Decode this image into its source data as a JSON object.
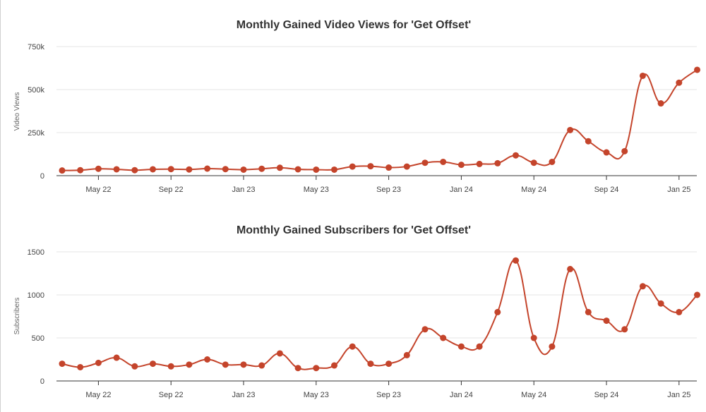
{
  "theme": {
    "line_color": "#c4442b",
    "grid_color": "#e6e6e6",
    "axis_color": "#333333"
  },
  "chart_data": [
    {
      "type": "line",
      "title": "Monthly Gained Video Views for 'Get Offset'",
      "xlabel": "",
      "ylabel": "Video Views",
      "x_ticks": [
        "May 22",
        "Sep 22",
        "Jan 23",
        "May 23",
        "Sep 23",
        "Jan 24",
        "May 24",
        "Sep 24",
        "Jan 25"
      ],
      "y_ticks": [
        "0",
        "250k",
        "500k",
        "750k"
      ],
      "ylim": [
        0,
        750000
      ],
      "grid": true,
      "series": [
        {
          "x": [
            "2022-03",
            "2022-04",
            "2022-05",
            "2022-06",
            "2022-07",
            "2022-08",
            "2022-09",
            "2022-10",
            "2022-11",
            "2022-12",
            "2023-01",
            "2023-02",
            "2023-03",
            "2023-04",
            "2023-05",
            "2023-06",
            "2023-07",
            "2023-08",
            "2023-09",
            "2023-10",
            "2023-11",
            "2023-12",
            "2024-01",
            "2024-02",
            "2024-03",
            "2024-04",
            "2024-05",
            "2024-06",
            "2024-07",
            "2024-08",
            "2024-09",
            "2024-10",
            "2024-11",
            "2024-12",
            "2025-01",
            "2025-02"
          ],
          "values": [
            30000,
            32000,
            40000,
            37000,
            32000,
            37000,
            38000,
            36000,
            41000,
            38000,
            35000,
            40000,
            46000,
            37000,
            35000,
            35000,
            53000,
            55000,
            47000,
            53000,
            75000,
            80000,
            63000,
            68000,
            72000,
            118000,
            75000,
            80000,
            265000,
            200000,
            135000,
            142000,
            580000,
            420000,
            540000,
            615000
          ]
        }
      ]
    },
    {
      "type": "line",
      "title": "Monthly Gained Subscribers for 'Get Offset'",
      "xlabel": "",
      "ylabel": "Subscribers",
      "x_ticks": [
        "May 22",
        "Sep 22",
        "Jan 23",
        "May 23",
        "Sep 23",
        "Jan 24",
        "May 24",
        "Sep 24",
        "Jan 25"
      ],
      "y_ticks": [
        "0",
        "500",
        "1000",
        "1500"
      ],
      "ylim": [
        0,
        1500
      ],
      "grid": true,
      "series": [
        {
          "x": [
            "2022-03",
            "2022-04",
            "2022-05",
            "2022-06",
            "2022-07",
            "2022-08",
            "2022-09",
            "2022-10",
            "2022-11",
            "2022-12",
            "2023-01",
            "2023-02",
            "2023-03",
            "2023-04",
            "2023-05",
            "2023-06",
            "2023-07",
            "2023-08",
            "2023-09",
            "2023-10",
            "2023-11",
            "2023-12",
            "2024-01",
            "2024-02",
            "2024-03",
            "2024-04",
            "2024-05",
            "2024-06",
            "2024-07",
            "2024-08",
            "2024-09",
            "2024-10",
            "2024-11",
            "2024-12",
            "2025-01",
            "2025-02"
          ],
          "values": [
            200,
            160,
            210,
            270,
            170,
            200,
            170,
            190,
            250,
            190,
            190,
            180,
            320,
            150,
            150,
            180,
            400,
            200,
            200,
            300,
            600,
            500,
            400,
            400,
            800,
            1400,
            500,
            400,
            1300,
            800,
            700,
            600,
            1100,
            900,
            800,
            1000
          ]
        }
      ]
    }
  ]
}
